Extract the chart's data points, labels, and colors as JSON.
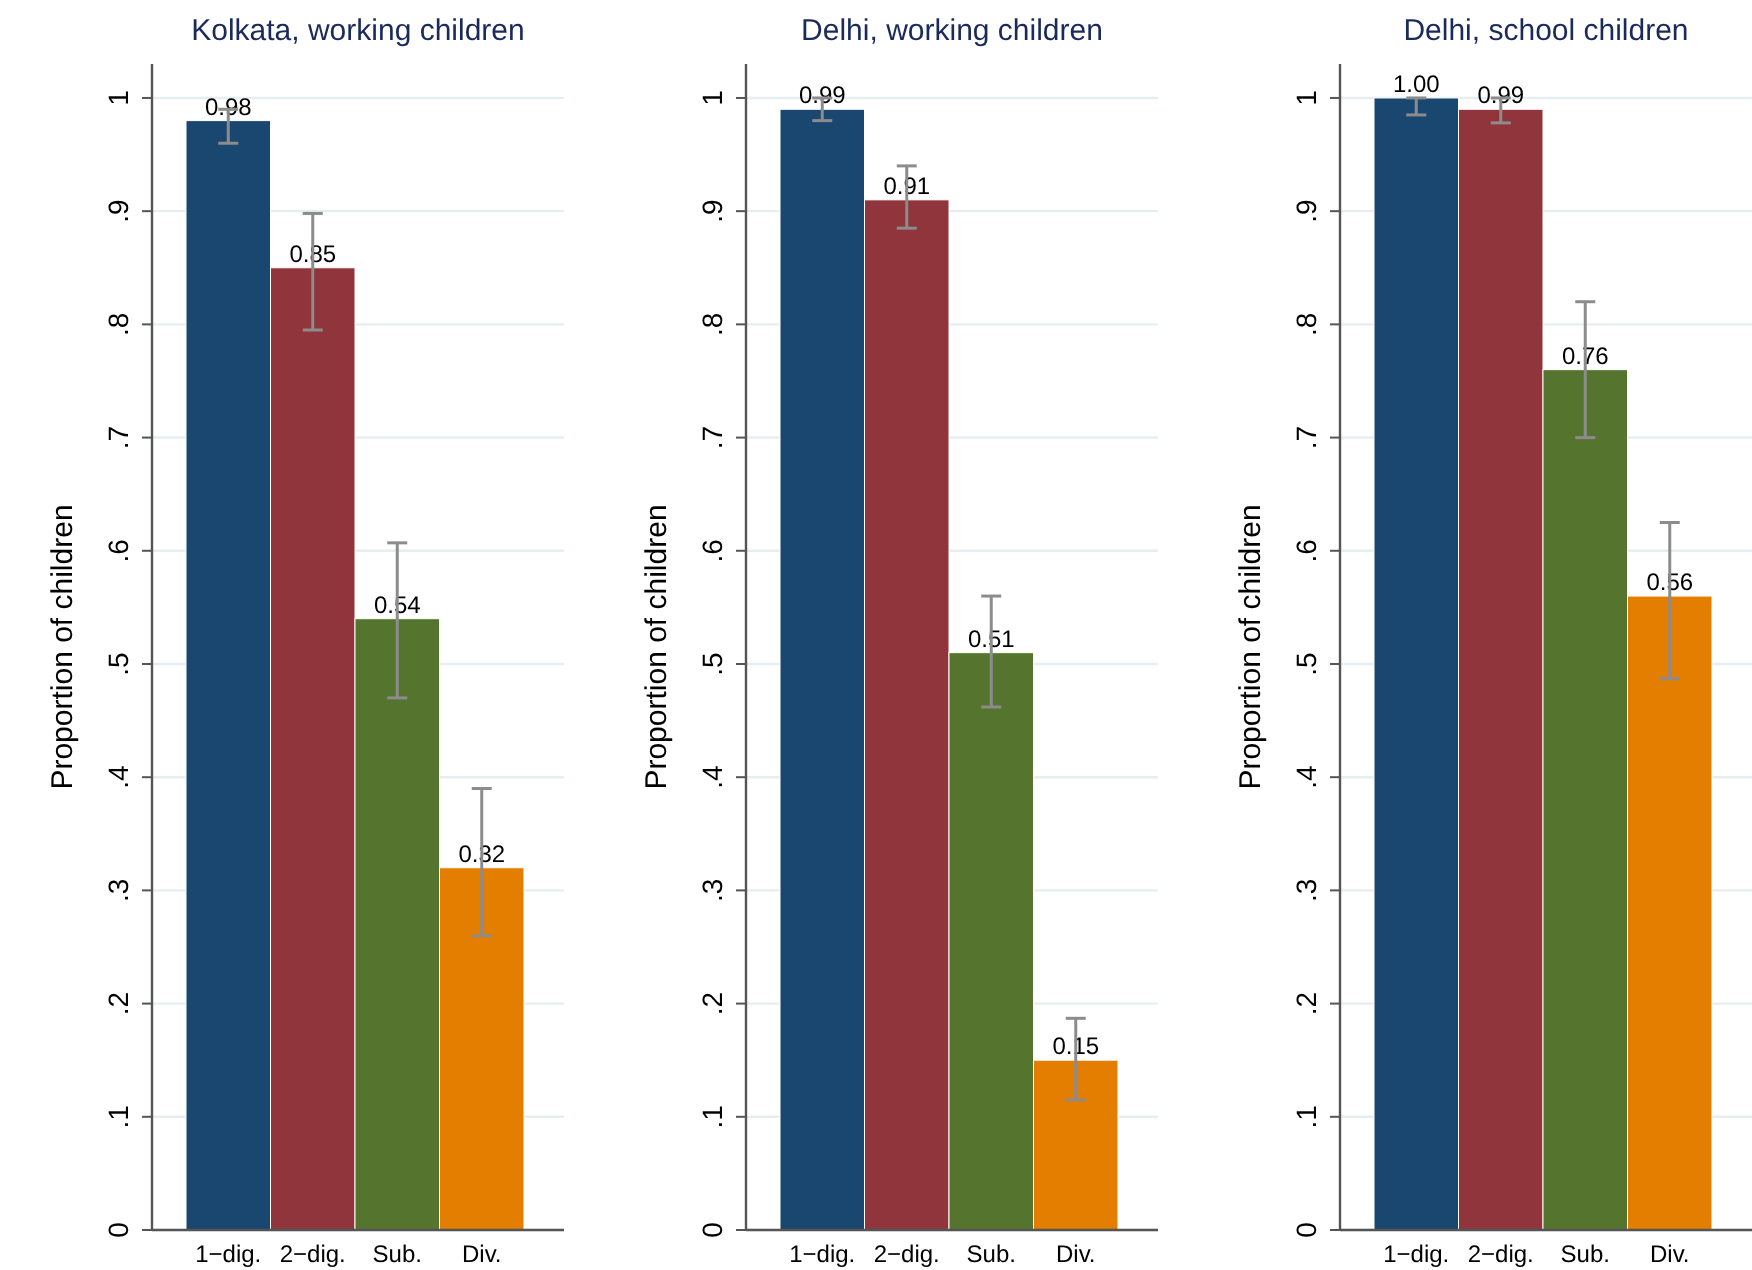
{
  "chart_data": [
    {
      "type": "bar",
      "title": "Kolkata, working children",
      "ylabel": "Proportion of children",
      "categories": [
        "1−dig.",
        "2−dig.",
        "Sub.",
        "Div."
      ],
      "values": [
        0.98,
        0.85,
        0.54,
        0.32
      ],
      "colors": [
        "#1a476f",
        "#90353b",
        "#55752f",
        "#e37e00"
      ],
      "errors": [
        [
          0.96,
          0.99
        ],
        [
          0.795,
          0.898
        ],
        [
          0.47,
          0.607
        ],
        [
          0.26,
          0.39
        ]
      ],
      "value_labels": [
        "0.98",
        "0.85",
        "0.54",
        "0.32"
      ],
      "ylim": [
        0,
        1.03
      ],
      "yticks": [
        {
          "value": 0,
          "label": "0"
        },
        {
          "value": 0.1,
          "label": ".1"
        },
        {
          "value": 0.2,
          "label": ".2"
        },
        {
          "value": 0.3,
          "label": ".3"
        },
        {
          "value": 0.4,
          "label": ".4"
        },
        {
          "value": 0.5,
          "label": ".5"
        },
        {
          "value": 0.6,
          "label": ".6"
        },
        {
          "value": 0.7,
          "label": ".7"
        },
        {
          "value": 0.8,
          "label": ".8"
        },
        {
          "value": 0.9,
          "label": ".9"
        },
        {
          "value": 1,
          "label": "1"
        }
      ],
      "grid": "y"
    },
    {
      "type": "bar",
      "title": "Delhi, working children",
      "ylabel": "Proportion of children",
      "categories": [
        "1−dig.",
        "2−dig.",
        "Sub.",
        "Div."
      ],
      "values": [
        0.99,
        0.91,
        0.51,
        0.15
      ],
      "colors": [
        "#1a476f",
        "#90353b",
        "#55752f",
        "#e37e00"
      ],
      "errors": [
        [
          0.98,
          1.0
        ],
        [
          0.885,
          0.94
        ],
        [
          0.462,
          0.56
        ],
        [
          0.115,
          0.187
        ]
      ],
      "value_labels": [
        "0.99",
        "0.91",
        "0.51",
        "0.15"
      ],
      "ylim": [
        0,
        1.03
      ],
      "yticks": [
        {
          "value": 0,
          "label": "0"
        },
        {
          "value": 0.1,
          "label": ".1"
        },
        {
          "value": 0.2,
          "label": ".2"
        },
        {
          "value": 0.3,
          "label": ".3"
        },
        {
          "value": 0.4,
          "label": ".4"
        },
        {
          "value": 0.5,
          "label": ".5"
        },
        {
          "value": 0.6,
          "label": ".6"
        },
        {
          "value": 0.7,
          "label": ".7"
        },
        {
          "value": 0.8,
          "label": ".8"
        },
        {
          "value": 0.9,
          "label": ".9"
        },
        {
          "value": 1,
          "label": "1"
        }
      ],
      "grid": "y"
    },
    {
      "type": "bar",
      "title": "Delhi, school children",
      "ylabel": "Proportion of children",
      "categories": [
        "1−dig.",
        "2−dig.",
        "Sub.",
        "Div."
      ],
      "values": [
        1.0,
        0.99,
        0.76,
        0.56
      ],
      "colors": [
        "#1a476f",
        "#90353b",
        "#55752f",
        "#e37e00"
      ],
      "errors": [
        [
          0.985,
          1.0
        ],
        [
          0.978,
          1.0
        ],
        [
          0.7,
          0.82
        ],
        [
          0.487,
          0.625
        ]
      ],
      "value_labels": [
        "1.00",
        "0.99",
        "0.76",
        "0.56"
      ],
      "ylim": [
        0,
        1.03
      ],
      "yticks": [
        {
          "value": 0,
          "label": "0"
        },
        {
          "value": 0.1,
          "label": ".1"
        },
        {
          "value": 0.2,
          "label": ".2"
        },
        {
          "value": 0.3,
          "label": ".3"
        },
        {
          "value": 0.4,
          "label": ".4"
        },
        {
          "value": 0.5,
          "label": ".5"
        },
        {
          "value": 0.6,
          "label": ".6"
        },
        {
          "value": 0.7,
          "label": ".7"
        },
        {
          "value": 0.8,
          "label": ".8"
        },
        {
          "value": 0.9,
          "label": ".9"
        },
        {
          "value": 1,
          "label": "1"
        }
      ],
      "grid": "y"
    }
  ]
}
